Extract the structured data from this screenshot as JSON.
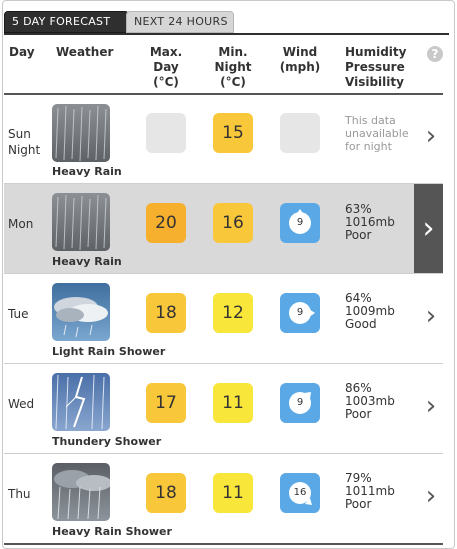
{
  "tabs": [
    {
      "label": "5 DAY FORECAST",
      "active": true
    },
    {
      "label": "NEXT 24 HOURS",
      "active": false
    }
  ],
  "header": {
    "day": "Day",
    "weather": "Weather",
    "max_day": [
      "Max.",
      "Day",
      "(°C)"
    ],
    "min_night": [
      "Min.",
      "Night",
      "(°C)"
    ],
    "wind": [
      "Wind",
      "(mph)"
    ],
    "hpv": [
      "Humidity",
      "Pressure",
      "Visibility"
    ],
    "help_icon": "?"
  },
  "colors": {
    "temp_orange": "#f7b02e",
    "temp_amber": "#f9c73a",
    "temp_yellow": "#f8e63b",
    "wind_blue": "#5aa9e6",
    "selected_bg": "#d9d9d9"
  },
  "rows": [
    {
      "day": [
        "Sun",
        "Night"
      ],
      "weather_label": "Heavy Rain",
      "weather_icon": "heavy-rain",
      "max": "",
      "min": "15",
      "wind_speed": "",
      "stats": [
        "This data",
        "unavailable",
        "for night"
      ]
    },
    {
      "day": [
        "Mon"
      ],
      "weather_label": "Heavy Rain",
      "weather_icon": "heavy-rain",
      "max": "20",
      "min": "16",
      "wind_speed": "9",
      "stats": [
        "63%",
        "1016mb",
        "Poor"
      ]
    },
    {
      "day": [
        "Tue"
      ],
      "weather_label": "Light Rain Shower",
      "weather_icon": "light-rain-shower",
      "max": "18",
      "min": "12",
      "wind_speed": "9",
      "stats": [
        "64%",
        "1009mb",
        "Good"
      ]
    },
    {
      "day": [
        "Wed"
      ],
      "weather_label": "Thundery Shower",
      "weather_icon": "thundery-shower",
      "max": "17",
      "min": "11",
      "wind_speed": "9",
      "stats": [
        "86%",
        "1003mb",
        "Poor"
      ]
    },
    {
      "day": [
        "Thu"
      ],
      "weather_label": "Heavy Rain Shower",
      "weather_icon": "heavy-rain-shower",
      "max": "18",
      "min": "11",
      "wind_speed": "16",
      "stats": [
        "79%",
        "1011mb",
        "Poor"
      ]
    }
  ],
  "chevron": "›"
}
